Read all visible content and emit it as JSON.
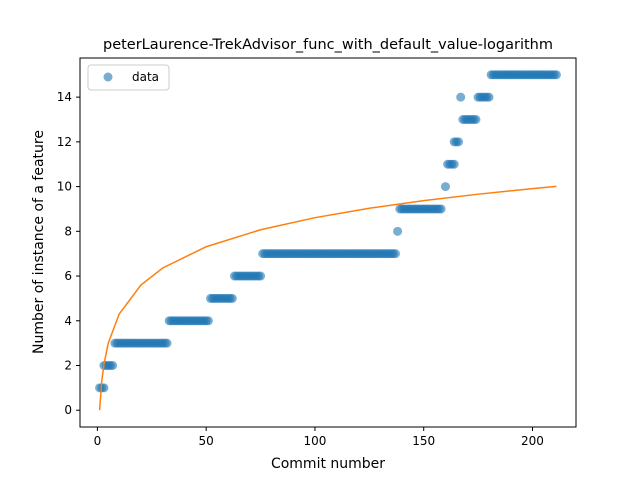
{
  "chart_data": {
    "type": "scatter",
    "title": "peterLaurence-TrekAdvisor_func_with_default_value-logarithm",
    "xlabel": "Commit number",
    "ylabel": "Number of instance of a feature",
    "xlim": [
      -8,
      220
    ],
    "ylim": [
      -0.75,
      15.75
    ],
    "xticks": [
      0,
      50,
      100,
      150,
      200
    ],
    "yticks": [
      0,
      2,
      4,
      6,
      8,
      10,
      12,
      14
    ],
    "legend": {
      "placement": "top-left",
      "entries": [
        "data"
      ]
    },
    "colors": {
      "data": "#1f77b4",
      "fit": "#ff7f0e"
    },
    "series": [
      {
        "name": "data",
        "kind": "scatter",
        "step_ranges": [
          {
            "x_start": 1,
            "x_end": 3,
            "y": 1
          },
          {
            "x_start": 3,
            "x_end": 7,
            "y": 2
          },
          {
            "x_start": 8,
            "x_end": 32,
            "y": 3
          },
          {
            "x_start": 33,
            "x_end": 51,
            "y": 4
          },
          {
            "x_start": 52,
            "x_end": 62,
            "y": 5
          },
          {
            "x_start": 63,
            "x_end": 75,
            "y": 6
          },
          {
            "x_start": 76,
            "x_end": 137,
            "y": 7
          },
          {
            "x_start": 138,
            "x_end": 138,
            "y": 8
          },
          {
            "x_start": 139,
            "x_end": 158,
            "y": 9
          },
          {
            "x_start": 160,
            "x_end": 160,
            "y": 10
          },
          {
            "x_start": 161,
            "x_end": 164,
            "y": 11
          },
          {
            "x_start": 164,
            "x_end": 166,
            "y": 12
          },
          {
            "x_start": 167,
            "x_end": 167,
            "y": 14
          },
          {
            "x_start": 168,
            "x_end": 174,
            "y": 13
          },
          {
            "x_start": 175,
            "x_end": 180,
            "y": 14
          },
          {
            "x_start": 181,
            "x_end": 211,
            "y": 15
          }
        ]
      },
      {
        "name": "",
        "kind": "line",
        "function": "logarithm",
        "x_range": [
          1,
          211
        ],
        "points": [
          [
            1,
            0
          ],
          [
            2,
            1.3
          ],
          [
            3,
            2.05
          ],
          [
            5,
            3.0
          ],
          [
            10,
            4.3
          ],
          [
            20,
            5.6
          ],
          [
            30,
            6.36
          ],
          [
            50,
            7.31
          ],
          [
            75,
            8.07
          ],
          [
            100,
            8.61
          ],
          [
            125,
            9.03
          ],
          [
            150,
            9.37
          ],
          [
            175,
            9.66
          ],
          [
            200,
            9.91
          ],
          [
            211,
            10.01
          ]
        ]
      }
    ]
  }
}
